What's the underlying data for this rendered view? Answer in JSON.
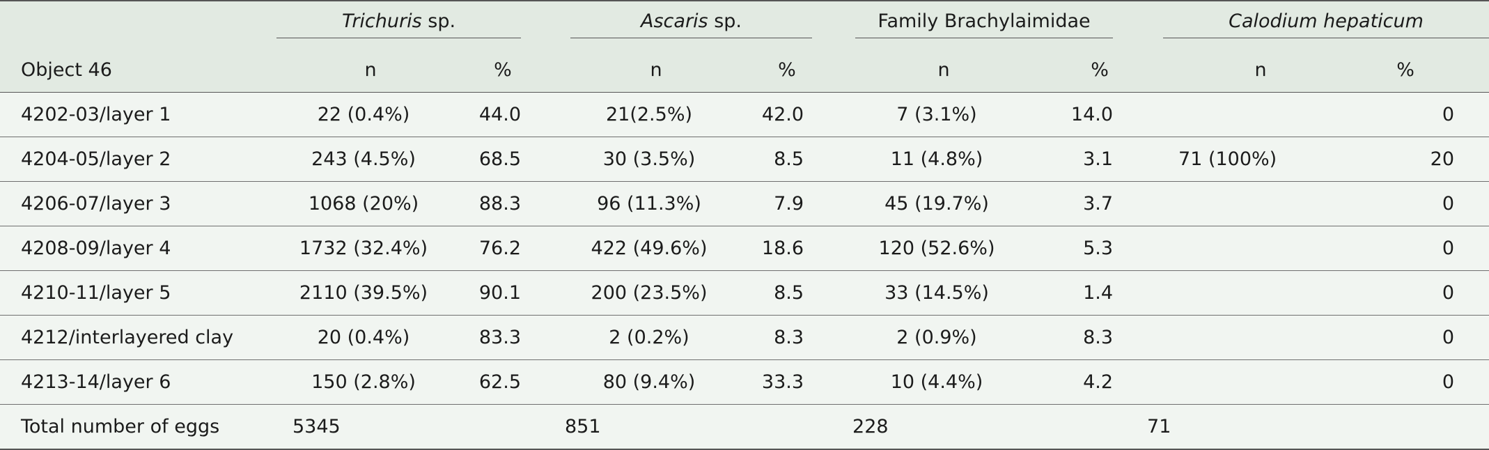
{
  "table": {
    "corner_label": "Object 46",
    "groups": [
      {
        "italic": "Trichuris",
        "rest": " sp."
      },
      {
        "italic": "Ascaris",
        "rest": " sp."
      },
      {
        "italic": "",
        "rest": "Family Brachylaimidae"
      },
      {
        "italic": "Calodium hepaticum",
        "rest": ""
      }
    ],
    "sub_headers": {
      "n": "n",
      "pct": "%"
    },
    "rows": [
      {
        "label": "4202-03/layer 1",
        "cells": [
          "22 (0.4%)",
          "44.0",
          "21(2.5%)",
          "42.0",
          "7 (3.1%)",
          "14.0",
          "",
          "0"
        ]
      },
      {
        "label": "4204-05/layer 2",
        "cells": [
          "243 (4.5%)",
          "68.5",
          "30 (3.5%)",
          "8.5",
          "11 (4.8%)",
          "3.1",
          "71 (100%)",
          "20"
        ]
      },
      {
        "label": "4206-07/layer 3",
        "cells": [
          "1068 (20%)",
          "88.3",
          "96 (11.3%)",
          "7.9",
          "45 (19.7%)",
          "3.7",
          "",
          "0"
        ]
      },
      {
        "label": "4208-09/layer 4",
        "cells": [
          "1732 (32.4%)",
          "76.2",
          "422 (49.6%)",
          "18.6",
          "120 (52.6%)",
          "5.3",
          "",
          "0"
        ]
      },
      {
        "label": "4210-11/layer 5",
        "cells": [
          "2110 (39.5%)",
          "90.1",
          "200 (23.5%)",
          "8.5",
          "33 (14.5%)",
          "1.4",
          "",
          "0"
        ]
      },
      {
        "label": "4212/interlayered clay",
        "cells": [
          "20 (0.4%)",
          "83.3",
          "2 (0.2%)",
          "8.3",
          "2 (0.9%)",
          "8.3",
          "",
          "0"
        ]
      },
      {
        "label": "4213-14/layer 6",
        "cells": [
          "150 (2.8%)",
          "62.5",
          "80 (9.4%)",
          "33.3",
          "10 (4.4%)",
          "4.2",
          "",
          "0"
        ]
      }
    ],
    "total": {
      "label": "Total number of eggs",
      "values": [
        "5345",
        "851",
        "228",
        "71"
      ]
    }
  }
}
